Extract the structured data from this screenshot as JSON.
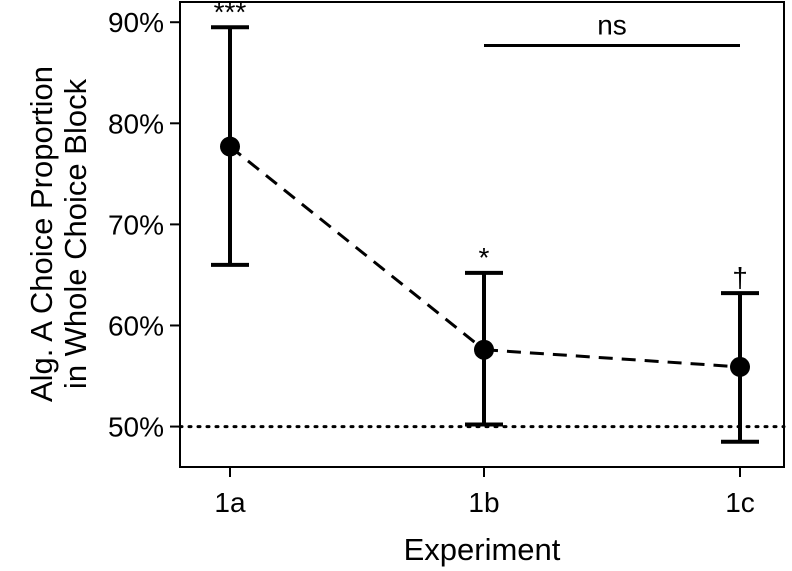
{
  "chart_data": {
    "type": "scatter",
    "title": "",
    "xlabel": "Experiment",
    "ylabel_lines": [
      "Alg. A Choice Proportion",
      "in Whole Choice Block"
    ],
    "categories": [
      "1a",
      "1b",
      "1c"
    ],
    "y_ticks": [
      0.5,
      0.6,
      0.7,
      0.8,
      0.9
    ],
    "y_tick_labels": [
      "50%",
      "60%",
      "70%",
      "80%",
      "90%"
    ],
    "ylim": [
      0.46,
      0.92
    ],
    "series": [
      {
        "values": [
          0.777,
          0.576,
          0.559
        ],
        "lower": [
          0.66,
          0.502,
          0.485
        ],
        "upper": [
          0.895,
          0.652,
          0.632
        ],
        "line_style": "dashed",
        "color": "#000000"
      }
    ],
    "significance": [
      "***",
      "*",
      "†"
    ],
    "reference_line": {
      "y": 0.5,
      "style": "dotted"
    },
    "comparison_bracket": {
      "from": "1b",
      "to": "1c",
      "y": 0.877,
      "label": "ns"
    },
    "grid": false,
    "legend": "none"
  }
}
